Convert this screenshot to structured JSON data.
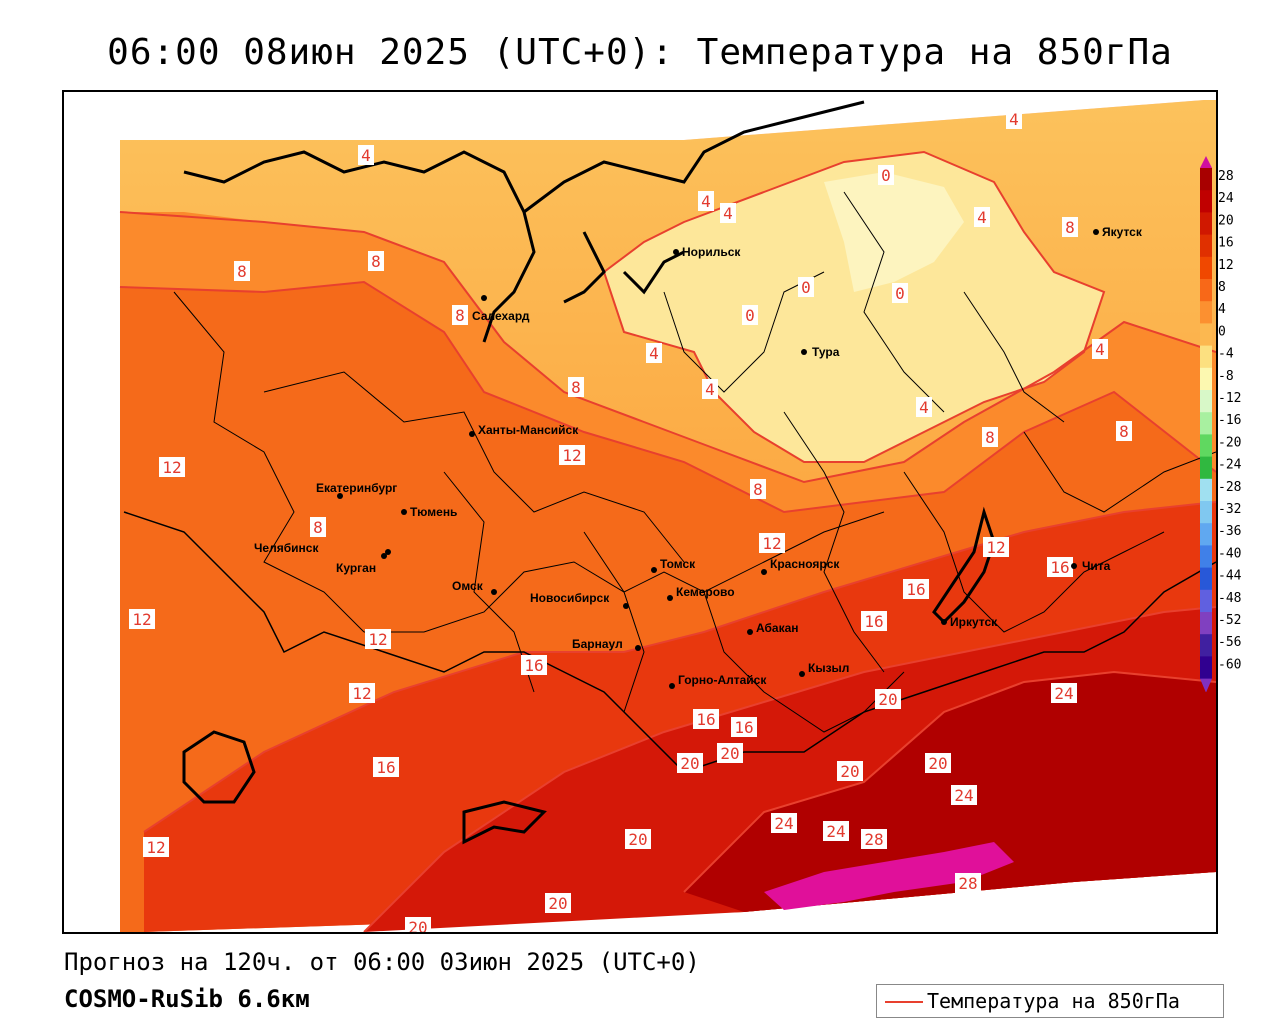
{
  "title": "06:00 08июн 2025 (UTC+0): Температура на 850гПа",
  "forecast_line": "Прогноз на 120ч. от 06:00 03июн 2025 (UTC+0)",
  "model_line": "COSMO-RuSib 6.6км",
  "legend": {
    "label": "Температура на 850гПа",
    "line_color": "#e8402e"
  },
  "colorbar": {
    "ticks": [
      "28",
      "24",
      "20",
      "16",
      "12",
      "8",
      "4",
      "0",
      "-4",
      "-8",
      "-12",
      "-16",
      "-20",
      "-24",
      "-28",
      "-32",
      "-36",
      "-40",
      "-44",
      "-48",
      "-52",
      "-56",
      "-60"
    ],
    "colors": [
      "#a80000",
      "#c00000",
      "#d01800",
      "#e03000",
      "#f04800",
      "#f86818",
      "#fc9030",
      "#fcb850",
      "#fce080",
      "#fcf8b0",
      "#d8f8c8",
      "#a8f0a0",
      "#60d860",
      "#30b840",
      "#a0e0f0",
      "#80c8f0",
      "#60a8f0",
      "#4080e8",
      "#2858d8",
      "#6060e0",
      "#8040c0",
      "#4020a0",
      "#300090"
    ]
  },
  "cities": [
    {
      "name": "Норильск"
    },
    {
      "name": "Якутск"
    },
    {
      "name": "Салехард"
    },
    {
      "name": "Тура"
    },
    {
      "name": "Ханты-Мансийск"
    },
    {
      "name": "Екатеринбург"
    },
    {
      "name": "Тюмень"
    },
    {
      "name": "Челябинск"
    },
    {
      "name": "Курган"
    },
    {
      "name": "Омск"
    },
    {
      "name": "Новосибирск"
    },
    {
      "name": "Томск"
    },
    {
      "name": "Кемерово"
    },
    {
      "name": "Красноярск"
    },
    {
      "name": "Абакан"
    },
    {
      "name": "Барнаул"
    },
    {
      "name": "Горно-Алтайск"
    },
    {
      "name": "Кызыл"
    },
    {
      "name": "Иркутск"
    },
    {
      "name": "Чита"
    }
  ],
  "isotherm_labels": [
    "4",
    "4",
    "4",
    "4",
    "0",
    "0",
    "0",
    "0",
    "8",
    "8",
    "8",
    "8",
    "8",
    "4",
    "4",
    "4",
    "4",
    "4",
    "8",
    "8",
    "8",
    "12",
    "12",
    "8",
    "12",
    "12",
    "16",
    "12",
    "12",
    "16",
    "16",
    "20",
    "24",
    "12",
    "16",
    "16",
    "16",
    "16",
    "20",
    "20",
    "20",
    "20",
    "24",
    "24",
    "24",
    "28",
    "28",
    "20",
    "12",
    "20",
    "20"
  ]
}
